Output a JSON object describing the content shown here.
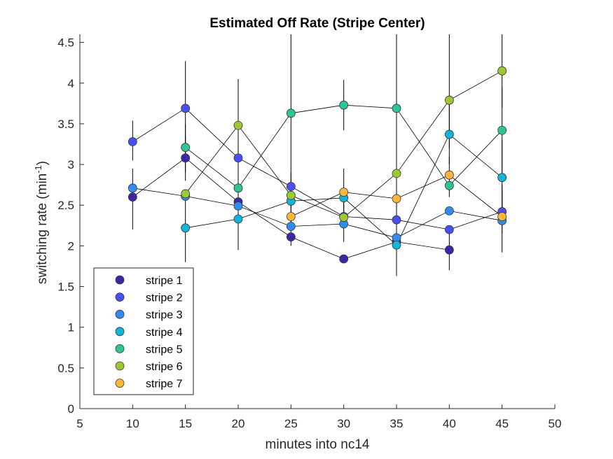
{
  "chart_data": {
    "type": "scatter",
    "title": "Estimated Off Rate (Stripe Center)",
    "xlabel": "minutes into nc14",
    "ylabel": "switching rate (min",
    "ylabel_sup": "-1",
    "ylabel_close": ")",
    "xlim": [
      5,
      50
    ],
    "ylim": [
      0,
      4.6
    ],
    "xticks": [
      5,
      10,
      15,
      20,
      25,
      30,
      35,
      40,
      45,
      50
    ],
    "yticks": [
      0,
      0.5,
      1,
      1.5,
      2,
      2.5,
      3,
      3.5,
      4,
      4.5
    ],
    "xtick_labels": [
      "5",
      "10",
      "15",
      "20",
      "25",
      "30",
      "35",
      "40",
      "45",
      "50"
    ],
    "ytick_labels": [
      "0",
      "0.5",
      "1",
      "1.5",
      "2",
      "2.5",
      "3",
      "3.5",
      "4",
      "4.5"
    ],
    "legend_position": "bottom-left",
    "grid": false,
    "series": [
      {
        "name": "stripe 1",
        "color": "#3e26a8",
        "points": [
          [
            10,
            2.6
          ],
          [
            15,
            3.08
          ],
          [
            20,
            2.54
          ],
          [
            25,
            2.11
          ],
          [
            30,
            1.84
          ],
          [
            35,
            2.05
          ],
          [
            40,
            1.95
          ]
        ],
        "err": [
          [
            10,
            2.2,
            2.95
          ],
          [
            15,
            2.8,
            3.35
          ],
          [
            40,
            1.7,
            2.2
          ]
        ]
      },
      {
        "name": "stripe 2",
        "color": "#4a4ef5",
        "points": [
          [
            10,
            3.28
          ],
          [
            15,
            3.69
          ],
          [
            20,
            3.08
          ],
          [
            25,
            2.73
          ],
          [
            30,
            2.36
          ],
          [
            35,
            2.32
          ],
          [
            40,
            2.2
          ],
          [
            45,
            2.42
          ]
        ],
        "err": [
          [
            10,
            3.05,
            3.54
          ],
          [
            15,
            3.15,
            4.27
          ],
          [
            20,
            2.8,
            3.4
          ],
          [
            30,
            2.05,
            2.65
          ],
          [
            45,
            2.15,
            2.7
          ]
        ]
      },
      {
        "name": "stripe 3",
        "color": "#2f8cf0",
        "points": [
          [
            10,
            2.71
          ],
          [
            15,
            2.61
          ],
          [
            20,
            2.49
          ],
          [
            25,
            2.24
          ],
          [
            30,
            2.27
          ],
          [
            35,
            2.1
          ],
          [
            40,
            2.43
          ],
          [
            45,
            2.31
          ]
        ],
        "err": [
          [
            20,
            2.2,
            2.8
          ]
        ]
      },
      {
        "name": "stripe 4",
        "color": "#12b5d9",
        "points": [
          [
            15,
            2.22
          ],
          [
            20,
            2.33
          ],
          [
            25,
            2.55
          ],
          [
            30,
            2.59
          ],
          [
            35,
            2.01
          ],
          [
            40,
            3.37
          ],
          [
            45,
            2.84
          ]
        ],
        "err": [
          [
            15,
            1.8,
            2.6
          ],
          [
            20,
            1.95,
            2.7
          ],
          [
            40,
            3.0,
            3.75
          ],
          [
            45,
            2.4,
            3.3
          ]
        ]
      },
      {
        "name": "stripe 5",
        "color": "#2ec497",
        "points": [
          [
            15,
            3.21
          ],
          [
            20,
            2.71
          ],
          [
            25,
            3.63
          ],
          [
            30,
            3.73
          ],
          [
            35,
            3.69
          ],
          [
            40,
            2.74
          ],
          [
            45,
            3.42
          ]
        ],
        "err": [
          [
            15,
            2.9,
            3.5
          ],
          [
            25,
            2.0,
            4.6
          ],
          [
            30,
            3.42,
            4.04
          ],
          [
            35,
            2.85,
            4.6
          ],
          [
            45,
            2.9,
            3.95
          ]
        ]
      },
      {
        "name": "stripe 6",
        "color": "#9dc833",
        "points": [
          [
            15,
            2.64
          ],
          [
            20,
            3.48
          ],
          [
            25,
            2.62
          ],
          [
            30,
            2.35
          ],
          [
            35,
            2.89
          ],
          [
            40,
            3.79
          ],
          [
            45,
            4.15
          ]
        ],
        "err": [
          [
            20,
            3.0,
            4.05
          ],
          [
            25,
            2.3,
            2.9
          ],
          [
            35,
            2.4,
            3.3
          ],
          [
            40,
            3.2,
            4.6
          ],
          [
            45,
            3.7,
            4.6
          ]
        ]
      },
      {
        "name": "stripe 7",
        "color": "#fbb63a",
        "points": [
          [
            25,
            2.36
          ],
          [
            30,
            2.66
          ],
          [
            35,
            2.58
          ],
          [
            40,
            2.87
          ],
          [
            45,
            2.36
          ]
        ],
        "err": [
          [
            30,
            2.35,
            2.95
          ],
          [
            35,
            1.63,
            3.2
          ],
          [
            40,
            2.6,
            3.1
          ],
          [
            45,
            1.92,
            2.75
          ]
        ]
      }
    ]
  }
}
